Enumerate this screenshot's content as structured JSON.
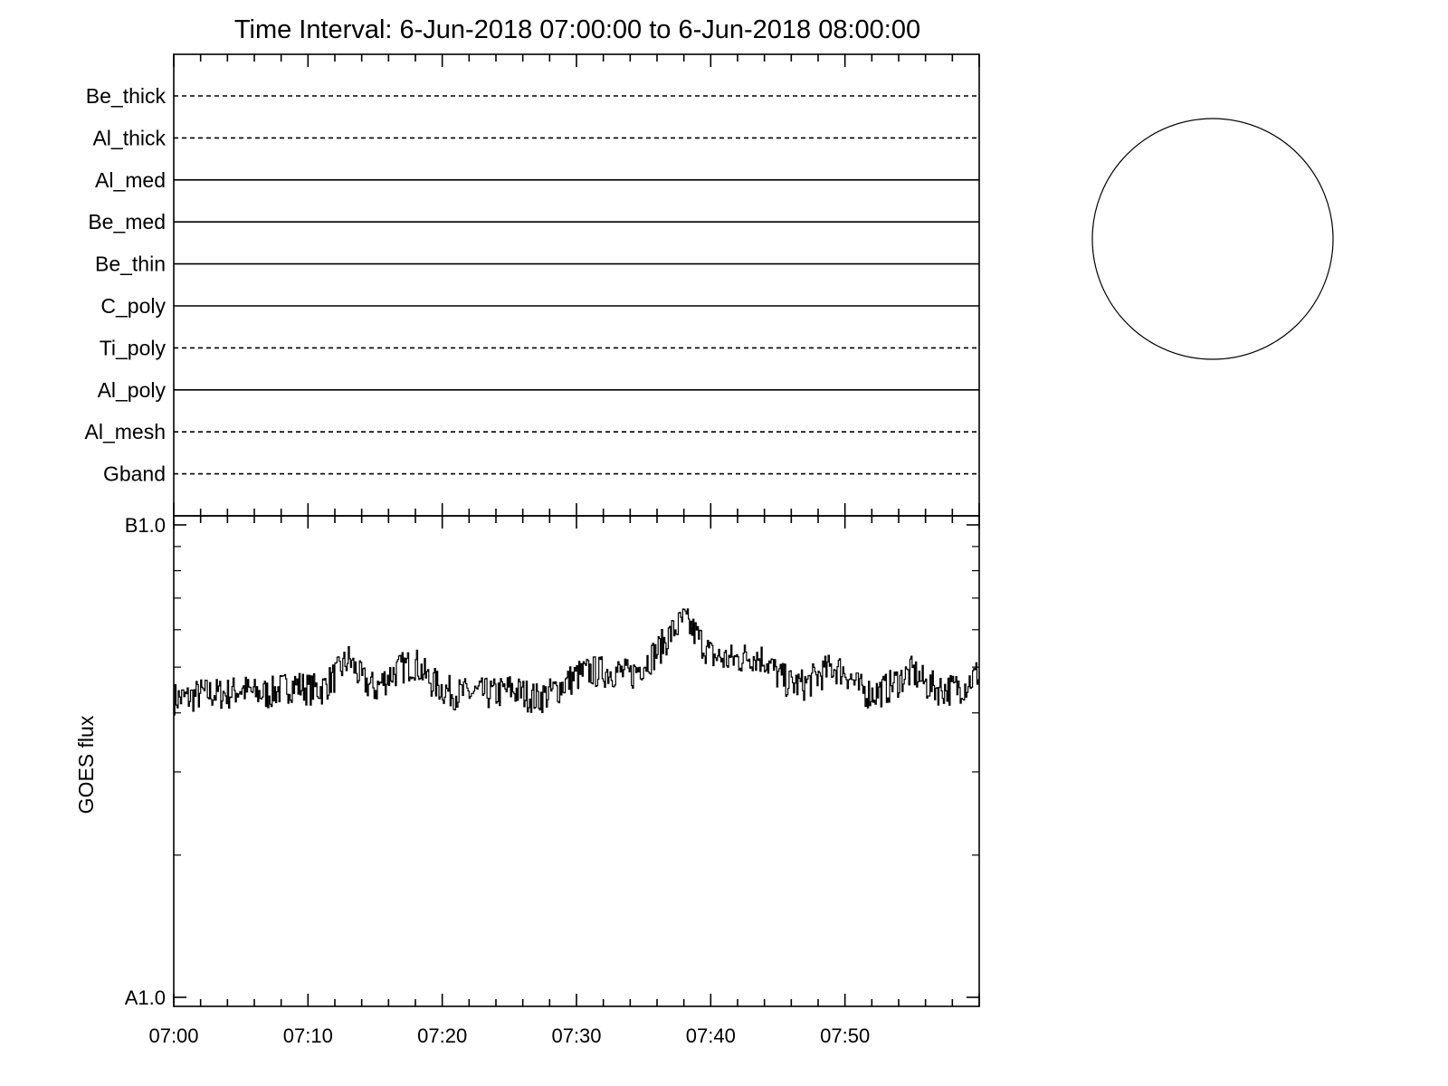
{
  "title": "Time Interval:  6-Jun-2018 07:00:00 to  6-Jun-2018 08:00:00",
  "chart_data": {
    "type": "line",
    "filter_panel": {
      "filters": [
        {
          "name": "Be_thick",
          "style": "dashed"
        },
        {
          "name": "Al_thick",
          "style": "dashed"
        },
        {
          "name": "Al_med",
          "style": "solid"
        },
        {
          "name": "Be_med",
          "style": "solid"
        },
        {
          "name": "Be_thin",
          "style": "solid"
        },
        {
          "name": "C_poly",
          "style": "solid"
        },
        {
          "name": "Ti_poly",
          "style": "dashed"
        },
        {
          "name": "Al_poly",
          "style": "solid"
        },
        {
          "name": "Al_mesh",
          "style": "dashed"
        },
        {
          "name": "Gband",
          "style": "dashed"
        }
      ]
    },
    "goes_panel": {
      "ylabel": "GOES flux",
      "y_scale": "log",
      "ylim": [
        1e-08,
        1e-07
      ],
      "y_tick_labels": [
        "A1.0",
        "B1.0"
      ],
      "y_tick_values": [
        1e-08,
        1e-07
      ],
      "xlim": [
        "07:00",
        "08:00"
      ],
      "x_tick_labels": [
        "07:00",
        "07:10",
        "07:20",
        "07:30",
        "07:40",
        "07:50"
      ],
      "x_tick_minutes": [
        0,
        10,
        20,
        30,
        40,
        50
      ],
      "series": [
        {
          "x_minutes": [
            0,
            1,
            2,
            3,
            4,
            5,
            6,
            7,
            8,
            9,
            10,
            11,
            12,
            13,
            14,
            15,
            16,
            17,
            18,
            19,
            20,
            21,
            22,
            23,
            24,
            25,
            26,
            27,
            28,
            29,
            30,
            31,
            32,
            33,
            34,
            35,
            36,
            37,
            38,
            39,
            40,
            41,
            42,
            43,
            44,
            45,
            46,
            47,
            48,
            49,
            50,
            51,
            52,
            53,
            54,
            55,
            56,
            57,
            58,
            59,
            60
          ],
          "flux": [
            4.3e-08,
            4.3e-08,
            4.4e-08,
            4.4e-08,
            4.4e-08,
            4.5e-08,
            4.4e-08,
            4.4e-08,
            4.5e-08,
            4.6e-08,
            4.5e-08,
            4.5e-08,
            4.8e-08,
            5.2e-08,
            4.7e-08,
            4.5e-08,
            4.8e-08,
            5e-08,
            5.1e-08,
            4.7e-08,
            4.5e-08,
            4.4e-08,
            4.4e-08,
            4.4e-08,
            4.4e-08,
            4.5e-08,
            4.4e-08,
            4.3e-08,
            4.4e-08,
            4.6e-08,
            4.8e-08,
            4.9e-08,
            4.9e-08,
            4.9e-08,
            4.8e-08,
            5.1e-08,
            5.4e-08,
            5.9e-08,
            6.3e-08,
            5.8e-08,
            5.3e-08,
            5.2e-08,
            5.2e-08,
            5.3e-08,
            5.2e-08,
            4.8e-08,
            4.6e-08,
            4.6e-08,
            4.8e-08,
            5e-08,
            4.9e-08,
            4.5e-08,
            4.4e-08,
            4.5e-08,
            4.7e-08,
            4.9e-08,
            4.6e-08,
            4.5e-08,
            4.5e-08,
            4.6e-08,
            4.9e-08
          ]
        }
      ]
    }
  }
}
